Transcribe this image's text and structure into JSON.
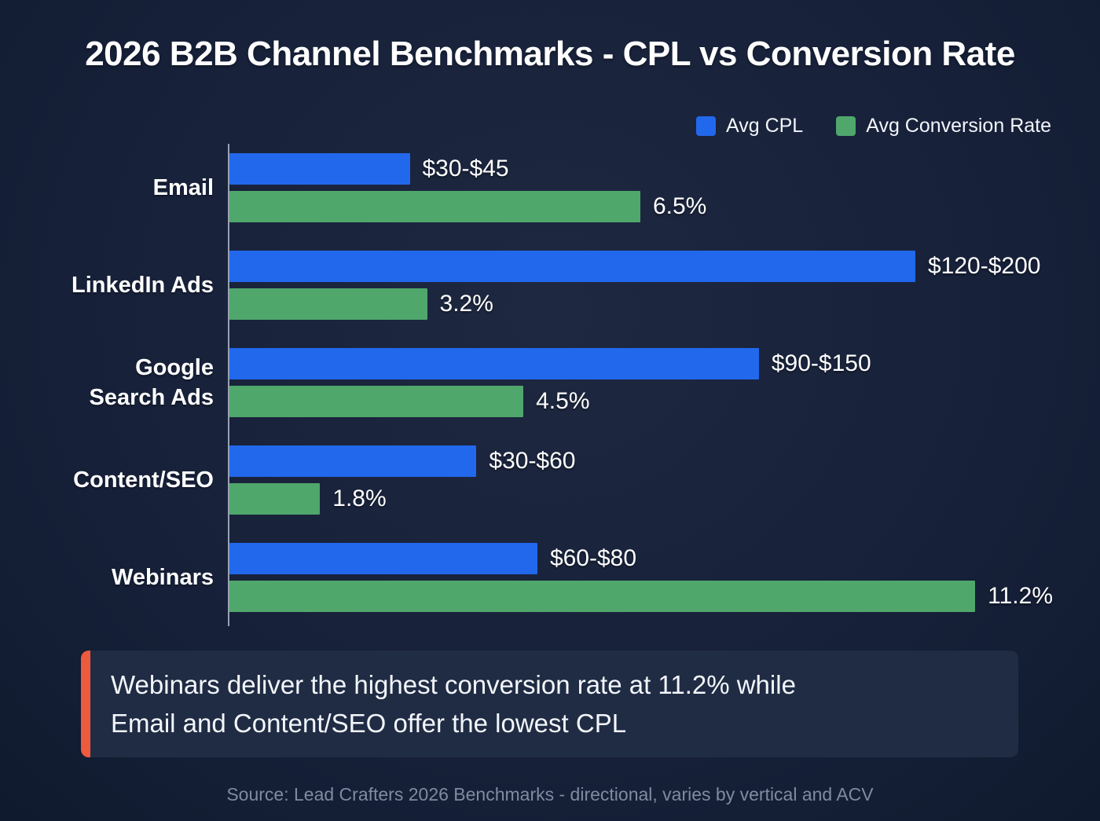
{
  "page": {
    "title": "2026 B2B Channel Benchmarks - CPL vs Conversion Rate"
  },
  "legend": {
    "items": [
      {
        "label": "Avg CPL",
        "color": "#2268ec"
      },
      {
        "label": "Avg Conversion Rate",
        "color": "#4fa76c"
      }
    ]
  },
  "chart_data": {
    "type": "bar",
    "orientation": "horizontal",
    "title": "2026 B2B Channel Benchmarks - CPL vs Conversion Rate",
    "categories": [
      "Email",
      "LinkedIn Ads",
      "Google Search Ads",
      "Content/SEO",
      "Webinars"
    ],
    "categories_display": [
      "Email",
      "LinkedIn Ads",
      "Google\nSearch Ads",
      "Content/SEO",
      "Webinars"
    ],
    "series": [
      {
        "name": "Avg CPL",
        "color": "#2268ec",
        "unit": "USD per lead",
        "labels": [
          "$30-$45",
          "$120-$200",
          "$90-$150",
          "$30-$60",
          "$60-$80"
        ],
        "ranges_usd": [
          [
            30,
            45
          ],
          [
            120,
            200
          ],
          [
            90,
            150
          ],
          [
            30,
            60
          ],
          [
            60,
            80
          ]
        ],
        "bar_pct": [
          21.9,
          83.3,
          64.3,
          30.0,
          37.4
        ]
      },
      {
        "name": "Avg Conversion Rate",
        "color": "#4fa76c",
        "unit": "percent",
        "labels": [
          "6.5%",
          "3.2%",
          "4.5%",
          "1.8%",
          "11.2%"
        ],
        "values": [
          6.5,
          3.2,
          4.5,
          1.8,
          11.2
        ],
        "bar_pct": [
          49.9,
          24.0,
          35.7,
          11.0,
          92.3
        ]
      }
    ],
    "legend_position": "top-right",
    "grid": false,
    "background": "#17213a"
  },
  "callout": {
    "text": "Webinars deliver the highest conversion rate at 11.2% while\nEmail and Content/SEO offer the lowest CPL",
    "accent_color": "#ee5a3e",
    "background": "#202c44"
  },
  "footer": {
    "source": "Source: Lead Crafters 2026 Benchmarks - directional, varies by vertical and ACV"
  }
}
